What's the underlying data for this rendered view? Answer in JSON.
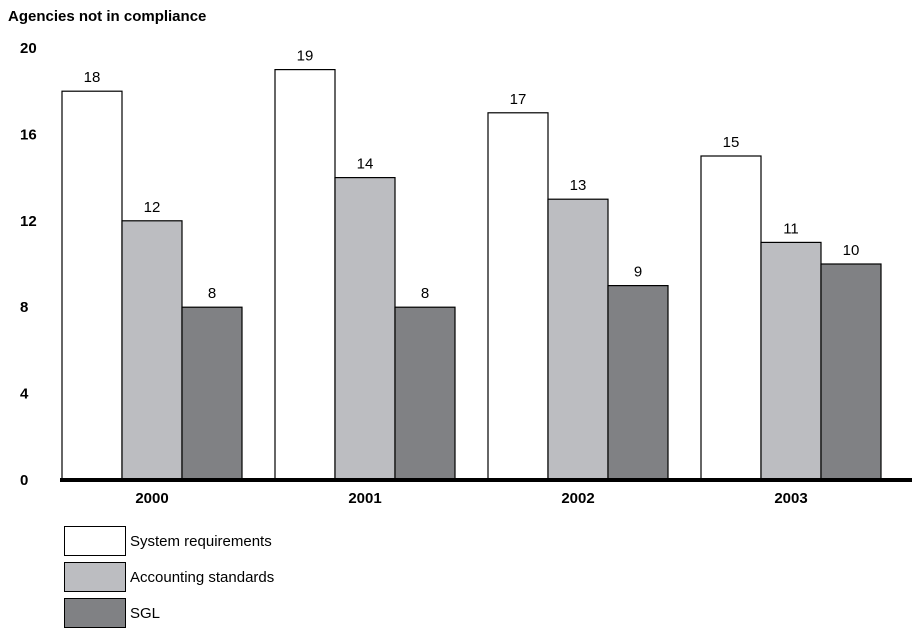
{
  "chart_data": {
    "type": "bar",
    "title": "",
    "ylabel": "Agencies not in compliance",
    "xlabel": "",
    "ylim": [
      0,
      20
    ],
    "yticks": [
      0,
      4,
      8,
      12,
      16,
      20
    ],
    "categories": [
      "2000",
      "2001",
      "2002",
      "2003"
    ],
    "series": [
      {
        "name": "System requirements",
        "values": [
          18,
          19,
          17,
          15
        ],
        "color": "#ffffff"
      },
      {
        "name": "Accounting standards",
        "values": [
          12,
          14,
          13,
          11
        ],
        "color": "#bcbdc1"
      },
      {
        "name": "SGL",
        "values": [
          8,
          8,
          9,
          10
        ],
        "color": "#808184"
      }
    ],
    "grid": false,
    "legend_position": "bottom-left"
  }
}
